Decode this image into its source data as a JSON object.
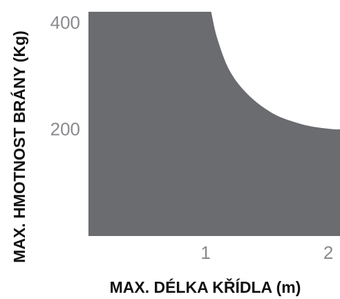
{
  "chart_data": {
    "type": "area",
    "title": "",
    "xlabel": "MAX. DÉLKA KŘÍDLA (m)",
    "ylabel": "MAX. HMOTNOST BRÁNY (Kg)",
    "xlim": [
      0,
      2.05
    ],
    "ylim": [
      0,
      420
    ],
    "x_ticks": [
      {
        "value": 1,
        "label": "1"
      },
      {
        "value": 2,
        "label": "2"
      }
    ],
    "y_ticks": [
      {
        "value": 200,
        "label": "200"
      },
      {
        "value": 400,
        "label": "400"
      }
    ],
    "series": [
      {
        "x": [
          0,
          1,
          1.05,
          1.15,
          1.3,
          1.5,
          1.7,
          1.85,
          2.0,
          2.05
        ],
        "y": [
          420,
          420,
          370,
          310,
          265,
          230,
          212,
          204,
          200,
          200
        ]
      }
    ],
    "fill_color": "#6b6c70",
    "grid": false
  }
}
